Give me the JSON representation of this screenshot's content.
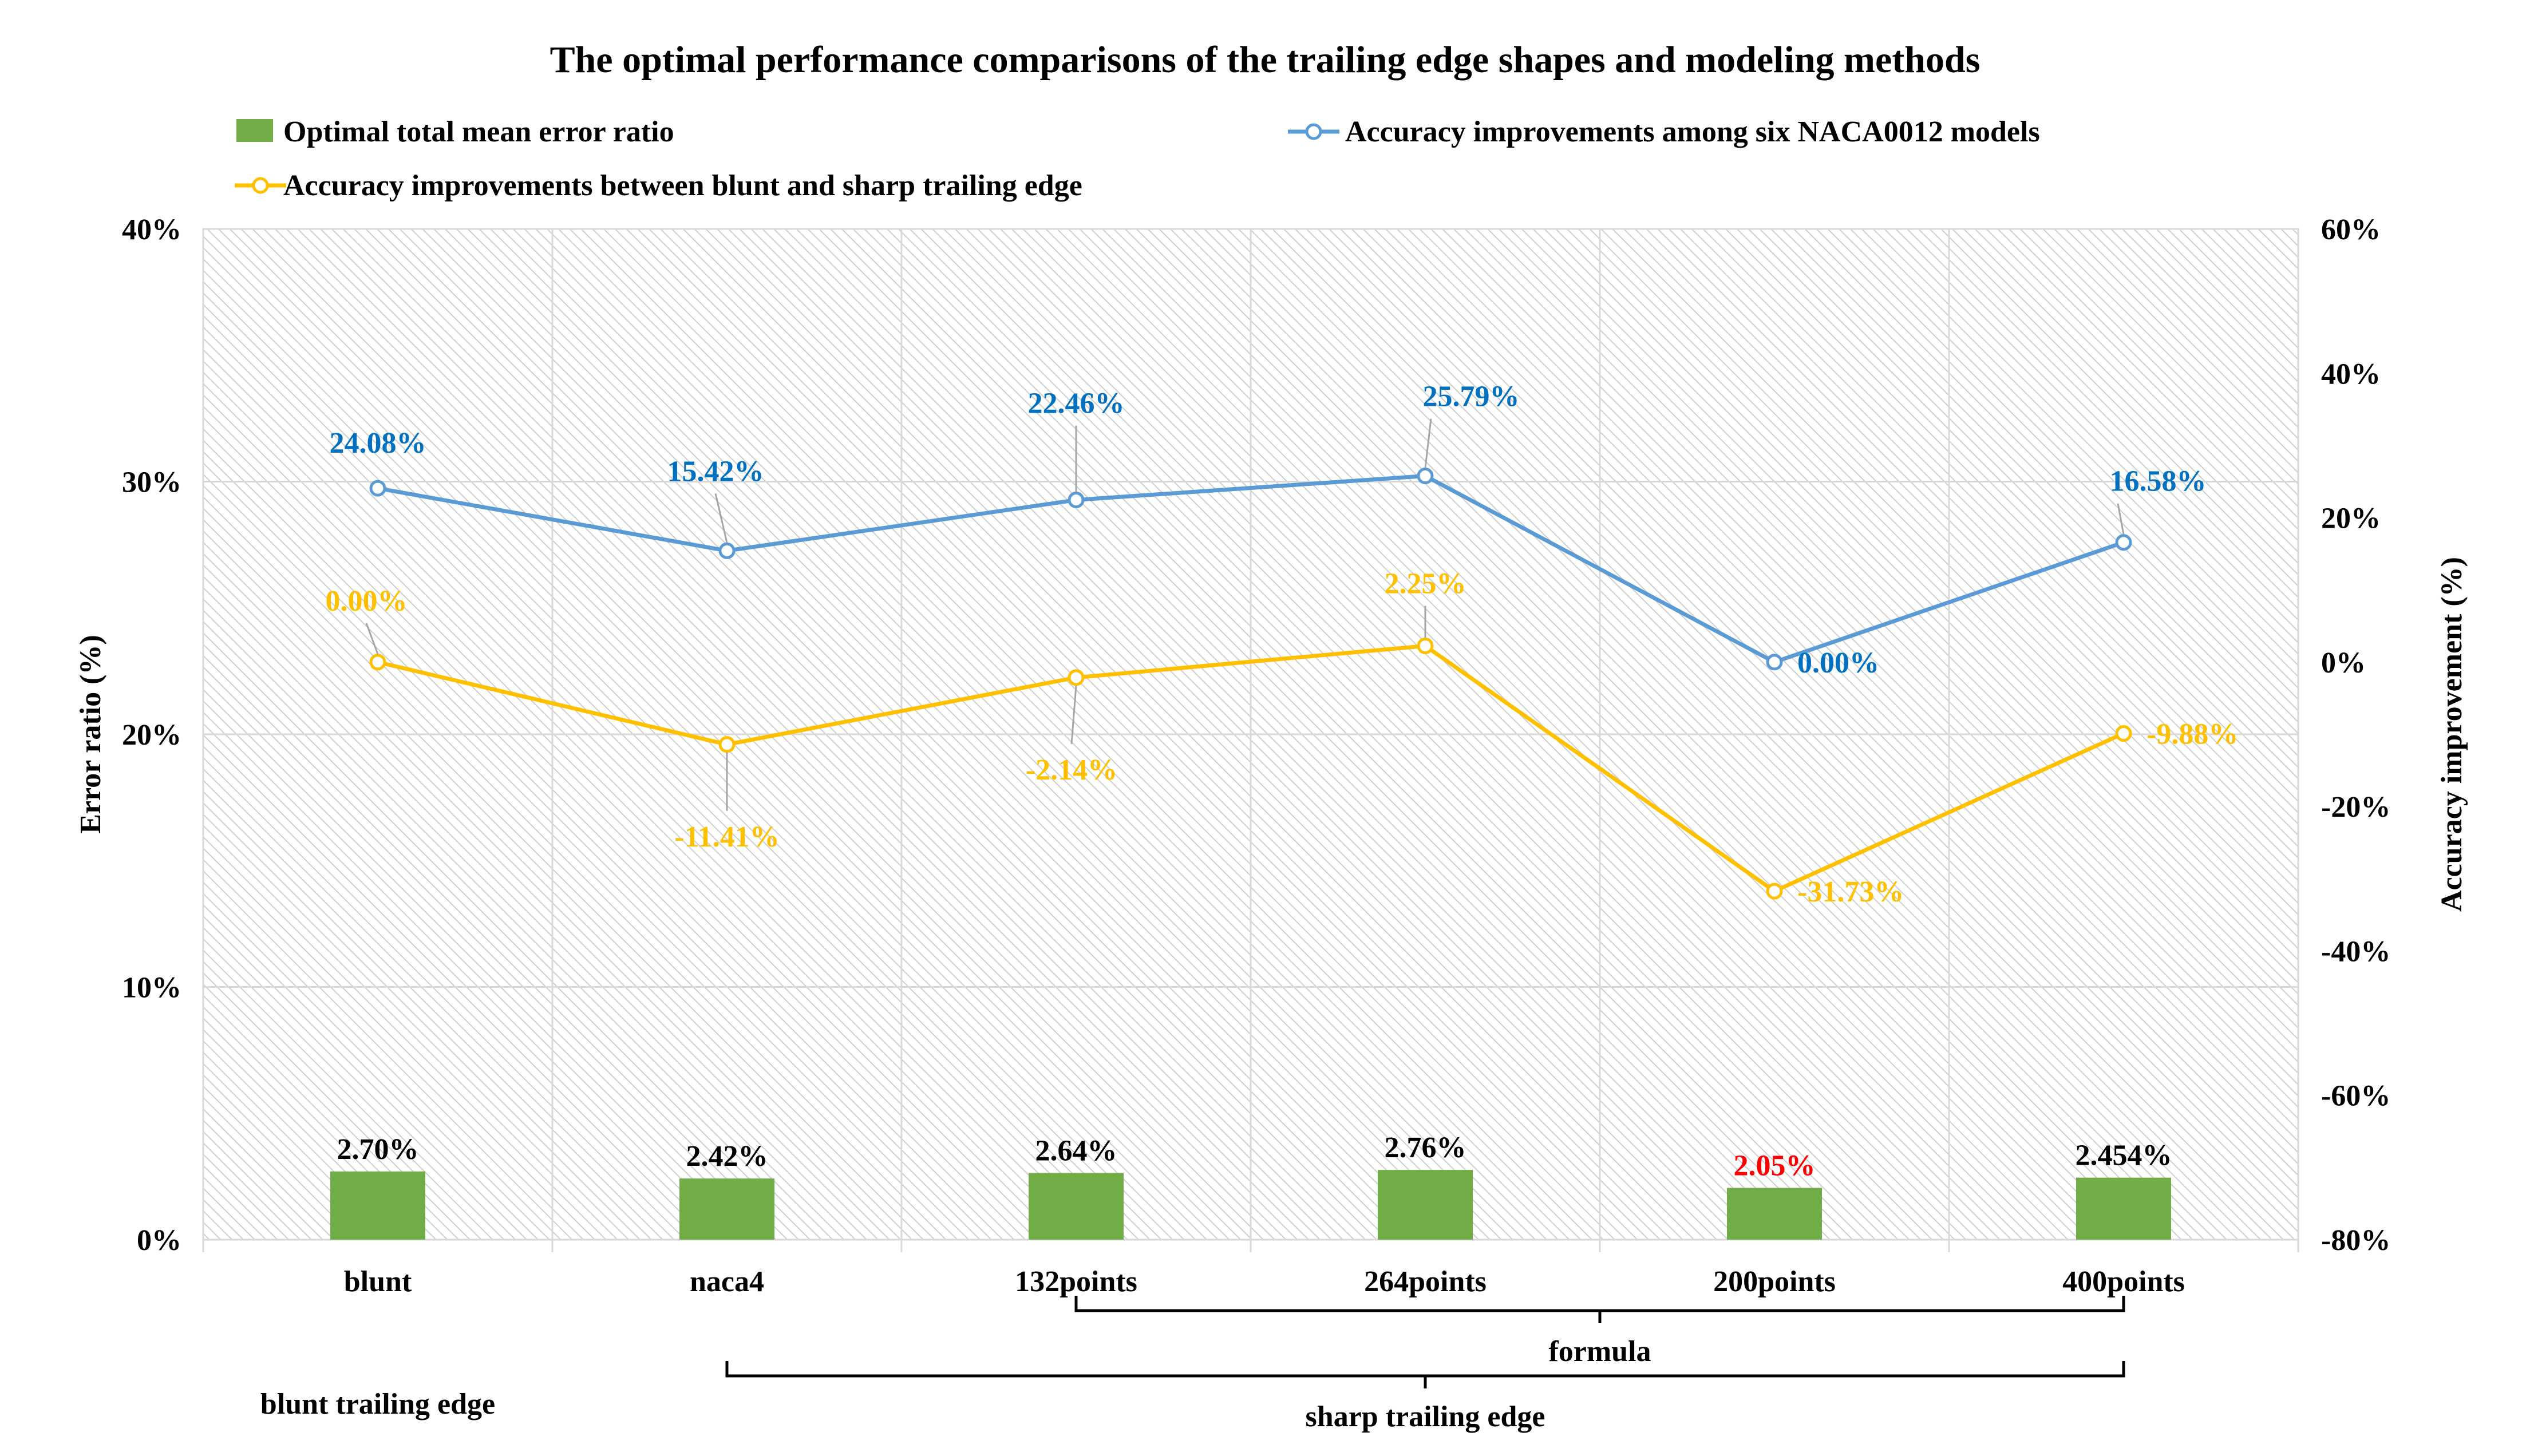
{
  "chart_data": {
    "type": "bar+line",
    "title": "The optimal performance comparisons of  the trailing edge shapes and modeling methods",
    "categories": [
      "blunt",
      "naca4",
      "132points",
      "264points",
      "200points",
      "400points"
    ],
    "left_axis": {
      "label": "Error ratio (%)",
      "ylim": [
        0,
        40
      ],
      "ticks": [
        "0%",
        "10%",
        "20%",
        "30%",
        "40%"
      ]
    },
    "right_axis": {
      "label": "Accuracy improvement (%)",
      "ylim": [
        -80,
        60
      ],
      "ticks": [
        "-80%",
        "-60%",
        "-40%",
        "-20%",
        "0%",
        "20%",
        "40%",
        "60%"
      ]
    },
    "grid": true,
    "legend_position": "top",
    "series": [
      {
        "name": "Optimal total mean error ratio",
        "type": "bar",
        "axis": "left",
        "color": "#70AD47",
        "values": [
          2.7,
          2.42,
          2.64,
          2.76,
          2.05,
          2.454
        ],
        "labels": [
          "2.70%",
          "2.42%",
          "2.64%",
          "2.76%",
          "2.05%",
          "2.454%"
        ],
        "label_colors": [
          "#000000",
          "#000000",
          "#000000",
          "#000000",
          "#FF0000",
          "#000000"
        ]
      },
      {
        "name": "Accuracy improvements among six NACA0012 models",
        "type": "line",
        "axis": "right",
        "color": "#5B9BD5",
        "label_color": "#0070C0",
        "values": [
          24.08,
          15.42,
          22.46,
          25.79,
          0.0,
          16.58
        ],
        "labels": [
          "24.08%",
          "15.42%",
          "22.46%",
          "25.79%",
          "0.00%",
          "16.58%"
        ]
      },
      {
        "name": "Accuracy improvements between blunt and sharp trailing edge",
        "type": "line",
        "axis": "right",
        "color": "#FFC000",
        "label_color": "#FFC000",
        "values": [
          0.0,
          -11.41,
          -2.14,
          2.25,
          -31.73,
          -9.88
        ],
        "labels": [
          "0.00%",
          "-11.41%",
          "-2.14%",
          "2.25%",
          "-31.73%",
          "-9.88%"
        ]
      }
    ],
    "groups": [
      {
        "label": "formula",
        "from": "132points",
        "to": "400points"
      },
      {
        "label": "sharp trailing edge",
        "from": "naca4",
        "to": "400points"
      },
      {
        "label": "blunt trailing edge",
        "from": "blunt",
        "to": "blunt"
      }
    ]
  }
}
